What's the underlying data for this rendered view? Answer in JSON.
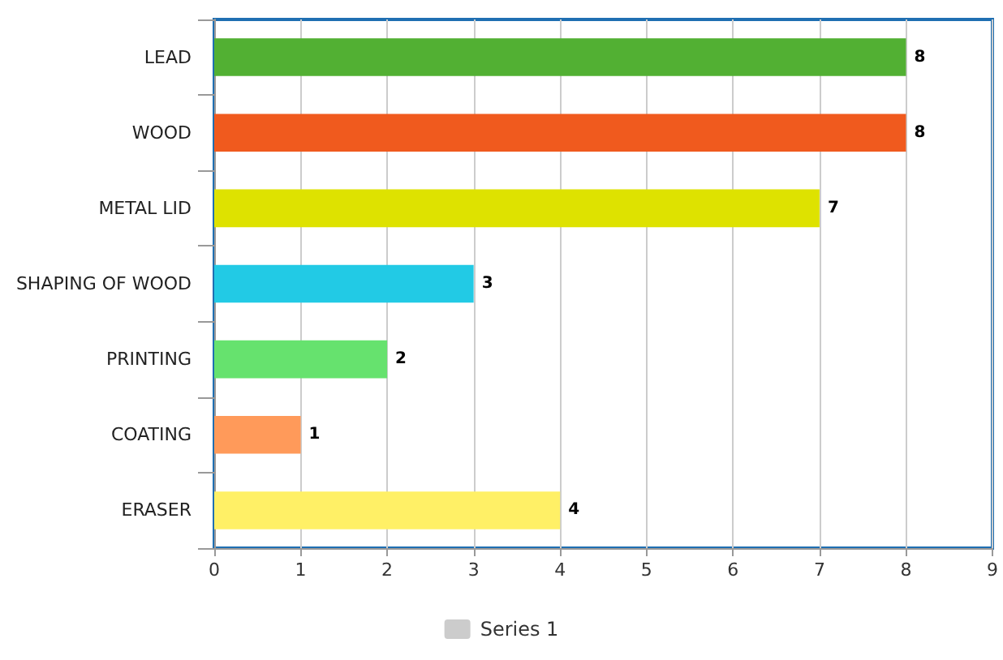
{
  "chart_data": {
    "type": "bar",
    "orientation": "horizontal",
    "categories": [
      "LEAD",
      "WOOD",
      "METAL LID",
      "SHAPING OF WOOD",
      "PRINTING",
      "COATING",
      "ERASER"
    ],
    "series": [
      {
        "name": "Series 1",
        "color": "#cccccc",
        "values": [
          8,
          8,
          7,
          3,
          2,
          1,
          4
        ],
        "colors": [
          "#52b033",
          "#f05a1e",
          "#dee200",
          "#22cae5",
          "#66e26e",
          "#ff9a5a",
          "#fff066"
        ]
      }
    ],
    "xlim": [
      0,
      9
    ],
    "xticks": [
      0,
      1,
      2,
      3,
      4,
      5,
      6,
      7,
      8,
      9
    ],
    "grid": "x",
    "data_labels": true,
    "legend": "bottom"
  }
}
